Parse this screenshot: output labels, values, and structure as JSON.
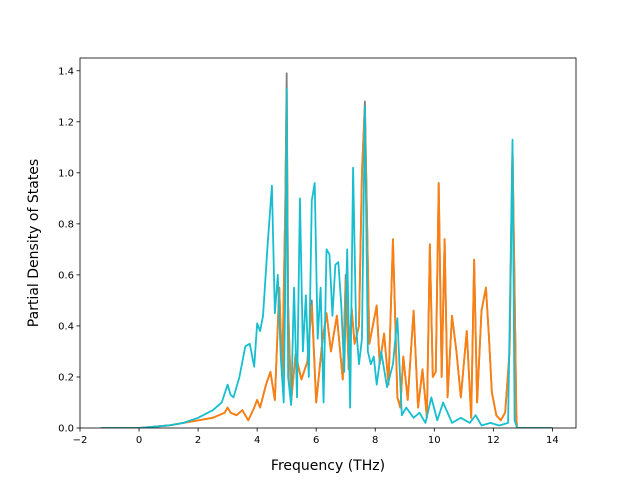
{
  "chart_data": {
    "type": "line",
    "title": "",
    "xlabel": "Frequency (THz)",
    "ylabel": "Partial Density of States",
    "xlim": [
      -2,
      14.8
    ],
    "ylim": [
      0,
      1.45
    ],
    "xticks": [
      -2,
      0,
      2,
      4,
      6,
      8,
      10,
      12,
      14
    ],
    "yticks": [
      0.0,
      0.2,
      0.4,
      0.6,
      0.8,
      1.0,
      1.2,
      1.4
    ],
    "xtick_labels": [
      "−2",
      "0",
      "2",
      "4",
      "6",
      "8",
      "10",
      "12",
      "14"
    ],
    "ytick_labels": [
      "0.0",
      "0.2",
      "0.4",
      "0.6",
      "0.8",
      "1.0",
      "1.2",
      "1.4"
    ],
    "grid": false,
    "legend": "none",
    "series": [
      {
        "color": "#7f7f7f",
        "x": [
          -1.3,
          0,
          1,
          2,
          2.5,
          2.9,
          3.0,
          3.1,
          3.3,
          3.5,
          3.7,
          3.9,
          4.0,
          4.1,
          4.3,
          4.45,
          4.6,
          4.75,
          4.85,
          4.95,
          5.0,
          5.05,
          5.15,
          5.3,
          5.5,
          5.7,
          5.85,
          6.0,
          6.2,
          6.35,
          6.5,
          6.7,
          6.9,
          7.0,
          7.1,
          7.2,
          7.3,
          7.45,
          7.55,
          7.65,
          7.8,
          7.95,
          8.05,
          8.15,
          8.3,
          8.45,
          8.6,
          8.75,
          8.85,
          8.95,
          9.1,
          9.3,
          9.45,
          9.6,
          9.75,
          9.85,
          9.95,
          10.05,
          10.15,
          10.25,
          10.35,
          10.45,
          10.6,
          10.75,
          10.9,
          11.1,
          11.25,
          11.35,
          11.45,
          11.6,
          11.75,
          11.85,
          11.95,
          12.1,
          12.25,
          12.4,
          12.55,
          12.65,
          12.72,
          12.78,
          12.8,
          14.0
        ],
        "y": [
          0,
          0,
          0.01,
          0.03,
          0.04,
          0.06,
          0.08,
          0.06,
          0.05,
          0.07,
          0.03,
          0.08,
          0.11,
          0.08,
          0.17,
          0.22,
          0.11,
          0.55,
          0.2,
          0.85,
          1.39,
          0.48,
          0.1,
          0.29,
          0.19,
          0.26,
          0.5,
          0.1,
          0.33,
          0.45,
          0.3,
          0.44,
          0.19,
          0.6,
          0.23,
          0.47,
          0.33,
          0.4,
          1.0,
          1.28,
          0.33,
          0.42,
          0.48,
          0.25,
          0.37,
          0.17,
          0.74,
          0.12,
          0.08,
          0.28,
          0.11,
          0.46,
          0.08,
          0.23,
          0.04,
          0.72,
          0.2,
          0.22,
          0.96,
          0.2,
          0.74,
          0.12,
          0.44,
          0.3,
          0.12,
          0.38,
          0.04,
          0.66,
          0.1,
          0.46,
          0.55,
          0.36,
          0.14,
          0.05,
          0.03,
          0.06,
          0.3,
          1.1,
          0.55,
          0.05,
          0,
          0
        ]
      },
      {
        "color": "#ff7f0e",
        "x": [
          -1.3,
          0,
          1,
          2,
          2.5,
          2.9,
          3.0,
          3.1,
          3.3,
          3.5,
          3.7,
          3.9,
          4.0,
          4.1,
          4.3,
          4.45,
          4.6,
          4.75,
          4.85,
          4.95,
          5.0,
          5.05,
          5.15,
          5.3,
          5.5,
          5.7,
          5.85,
          6.0,
          6.2,
          6.35,
          6.5,
          6.7,
          6.9,
          7.0,
          7.1,
          7.2,
          7.3,
          7.45,
          7.55,
          7.65,
          7.8,
          7.95,
          8.05,
          8.15,
          8.3,
          8.45,
          8.6,
          8.75,
          8.85,
          8.95,
          9.1,
          9.3,
          9.45,
          9.6,
          9.75,
          9.85,
          9.95,
          10.05,
          10.15,
          10.25,
          10.35,
          10.45,
          10.6,
          10.75,
          10.9,
          11.1,
          11.25,
          11.35,
          11.45,
          11.6,
          11.75,
          11.85,
          11.95,
          12.1,
          12.25,
          12.4,
          12.55,
          12.65,
          12.72,
          12.78,
          12.8,
          14.0
        ],
        "y": [
          0,
          0,
          0.01,
          0.03,
          0.04,
          0.06,
          0.08,
          0.06,
          0.05,
          0.07,
          0.03,
          0.08,
          0.11,
          0.08,
          0.17,
          0.22,
          0.11,
          0.55,
          0.2,
          0.85,
          1.33,
          0.48,
          0.1,
          0.29,
          0.19,
          0.26,
          0.48,
          0.1,
          0.33,
          0.45,
          0.3,
          0.44,
          0.19,
          0.58,
          0.23,
          0.47,
          0.33,
          0.4,
          1.0,
          1.26,
          0.33,
          0.42,
          0.48,
          0.25,
          0.37,
          0.17,
          0.74,
          0.12,
          0.08,
          0.28,
          0.11,
          0.46,
          0.08,
          0.23,
          0.04,
          0.72,
          0.2,
          0.22,
          0.96,
          0.2,
          0.74,
          0.12,
          0.44,
          0.3,
          0.12,
          0.38,
          0.04,
          0.66,
          0.1,
          0.46,
          0.55,
          0.36,
          0.14,
          0.05,
          0.03,
          0.06,
          0.3,
          1.1,
          0.55,
          0.05,
          0,
          0
        ]
      },
      {
        "color": "#17becf",
        "x": [
          -1.3,
          0,
          1,
          1.5,
          2,
          2.5,
          2.8,
          3.0,
          3.1,
          3.2,
          3.4,
          3.6,
          3.75,
          3.9,
          4.0,
          4.1,
          4.2,
          4.35,
          4.5,
          4.6,
          4.7,
          4.8,
          4.9,
          4.95,
          5.0,
          5.05,
          5.15,
          5.25,
          5.35,
          5.45,
          5.55,
          5.65,
          5.75,
          5.85,
          5.95,
          6.05,
          6.15,
          6.25,
          6.35,
          6.45,
          6.55,
          6.65,
          6.75,
          6.85,
          6.95,
          7.05,
          7.15,
          7.25,
          7.35,
          7.45,
          7.55,
          7.65,
          7.75,
          7.85,
          7.95,
          8.05,
          8.2,
          8.4,
          8.6,
          8.75,
          8.9,
          9.05,
          9.3,
          9.5,
          9.7,
          9.9,
          10.1,
          10.3,
          10.6,
          10.9,
          11.2,
          11.4,
          11.6,
          11.9,
          12.2,
          12.5,
          12.65,
          12.72,
          12.78,
          12.8,
          14.0
        ],
        "y": [
          0,
          0,
          0.01,
          0.02,
          0.04,
          0.07,
          0.1,
          0.17,
          0.13,
          0.12,
          0.2,
          0.32,
          0.33,
          0.24,
          0.41,
          0.38,
          0.44,
          0.71,
          0.95,
          0.45,
          0.6,
          0.28,
          0.1,
          0.52,
          1.33,
          0.2,
          0.09,
          0.55,
          0.12,
          0.9,
          0.3,
          0.52,
          0.2,
          0.89,
          0.96,
          0.35,
          0.55,
          0.1,
          0.7,
          0.68,
          0.44,
          0.64,
          0.65,
          0.48,
          0.22,
          0.7,
          0.08,
          1.02,
          0.4,
          0.25,
          0.35,
          1.26,
          0.3,
          0.25,
          0.28,
          0.17,
          0.3,
          0.16,
          0.25,
          0.43,
          0.05,
          0.08,
          0.04,
          0.06,
          0.02,
          0.12,
          0.03,
          0.1,
          0.02,
          0.04,
          0.02,
          0.05,
          0.01,
          0.02,
          0.01,
          0.02,
          1.13,
          0.03,
          0.01,
          0,
          0
        ]
      }
    ]
  }
}
